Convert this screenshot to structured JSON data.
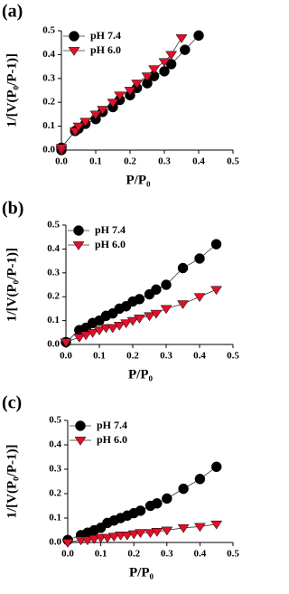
{
  "chart_data": [
    {
      "type": "line",
      "panel_label": "(a)",
      "x_label": "P/P₀",
      "y_label": "1/[V(P₀/P-1)]",
      "xlim": [
        0,
        0.5
      ],
      "ylim": [
        0,
        0.5
      ],
      "xticks": [
        {
          "value": 0,
          "label": "0.0"
        },
        0.1,
        0.2,
        0.3,
        0.4,
        0.5
      ],
      "yticks": [
        {
          "value": 0,
          "label": "0.0"
        },
        0.1,
        0.2,
        0.3,
        0.4,
        0.5
      ],
      "legend": "upper left",
      "series": [
        {
          "name": "pH 7.4",
          "color": "#000000",
          "marker": "circle",
          "x": [
            0.0,
            0.0,
            0.04,
            0.05,
            0.07,
            0.1,
            0.12,
            0.15,
            0.17,
            0.2,
            0.22,
            0.25,
            0.27,
            0.3,
            0.32,
            0.36,
            0.4
          ],
          "values": [
            0.0,
            0.01,
            0.08,
            0.09,
            0.11,
            0.13,
            0.16,
            0.18,
            0.21,
            0.23,
            0.26,
            0.28,
            0.31,
            0.33,
            0.36,
            0.42,
            0.48
          ]
        },
        {
          "name": "pH 6.0",
          "color": "#e0102a",
          "marker": "triangle-down",
          "x": [
            0.0,
            0.0,
            0.04,
            0.05,
            0.07,
            0.1,
            0.12,
            0.15,
            0.17,
            0.2,
            0.22,
            0.25,
            0.27,
            0.3,
            0.32,
            0.35
          ],
          "values": [
            0.0,
            0.01,
            0.08,
            0.1,
            0.12,
            0.15,
            0.17,
            0.2,
            0.23,
            0.25,
            0.28,
            0.31,
            0.34,
            0.37,
            0.4,
            0.47
          ]
        }
      ]
    },
    {
      "type": "line",
      "panel_label": "(b)",
      "x_label": "P/P₀",
      "y_label": "1/[V(P₀/P-1)]",
      "xlim": [
        0,
        0.5
      ],
      "ylim": [
        0,
        0.5
      ],
      "xticks": [
        {
          "value": 0,
          "label": "0.0"
        },
        0.1,
        0.2,
        0.3,
        0.4,
        0.5
      ],
      "yticks": [
        {
          "value": 0,
          "label": "0.0"
        },
        0.1,
        0.2,
        0.3,
        0.4,
        0.5
      ],
      "legend": "upper left",
      "series": [
        {
          "name": "pH 7.4",
          "color": "#000000",
          "marker": "circle",
          "x": [
            0.0,
            0.04,
            0.06,
            0.08,
            0.1,
            0.12,
            0.14,
            0.16,
            0.18,
            0.2,
            0.22,
            0.25,
            0.27,
            0.3,
            0.35,
            0.4,
            0.45
          ],
          "values": [
            0.01,
            0.06,
            0.07,
            0.09,
            0.1,
            0.12,
            0.13,
            0.15,
            0.16,
            0.18,
            0.19,
            0.21,
            0.23,
            0.25,
            0.32,
            0.36,
            0.42
          ]
        },
        {
          "name": "pH 6.0",
          "color": "#e0102a",
          "marker": "triangle-down",
          "x": [
            0.0,
            0.04,
            0.06,
            0.08,
            0.1,
            0.12,
            0.14,
            0.16,
            0.18,
            0.2,
            0.22,
            0.25,
            0.27,
            0.3,
            0.35,
            0.4,
            0.45
          ],
          "values": [
            0.01,
            0.03,
            0.04,
            0.05,
            0.06,
            0.07,
            0.07,
            0.08,
            0.09,
            0.1,
            0.11,
            0.12,
            0.13,
            0.15,
            0.17,
            0.2,
            0.23
          ]
        }
      ]
    },
    {
      "type": "line",
      "panel_label": "(c)",
      "x_label": "P/P₀",
      "y_label": "1/[V(P₀/P-1)]",
      "xlim": [
        0,
        0.5
      ],
      "ylim": [
        0,
        0.5
      ],
      "xticks": [
        {
          "value": 0,
          "label": "0.0"
        },
        0.1,
        0.2,
        0.3,
        0.4,
        0.5
      ],
      "yticks": [
        {
          "value": 0,
          "label": "0.0"
        },
        0.1,
        0.2,
        0.3,
        0.4,
        0.5
      ],
      "legend": "upper left",
      "series": [
        {
          "name": "pH 7.4",
          "color": "#000000",
          "marker": "circle",
          "x": [
            0.0,
            0.04,
            0.06,
            0.08,
            0.1,
            0.12,
            0.14,
            0.16,
            0.18,
            0.2,
            0.22,
            0.25,
            0.27,
            0.3,
            0.35,
            0.4,
            0.45
          ],
          "values": [
            0.01,
            0.03,
            0.04,
            0.05,
            0.06,
            0.08,
            0.09,
            0.1,
            0.11,
            0.12,
            0.13,
            0.15,
            0.16,
            0.18,
            0.22,
            0.26,
            0.31
          ]
        },
        {
          "name": "pH 6.0",
          "color": "#e0102a",
          "marker": "triangle-down",
          "x": [
            0.0,
            0.04,
            0.06,
            0.08,
            0.1,
            0.12,
            0.14,
            0.16,
            0.18,
            0.2,
            0.22,
            0.25,
            0.27,
            0.3,
            0.35,
            0.4,
            0.45
          ],
          "values": [
            0.0,
            0.01,
            0.01,
            0.015,
            0.02,
            0.02,
            0.025,
            0.03,
            0.03,
            0.035,
            0.04,
            0.04,
            0.045,
            0.05,
            0.06,
            0.065,
            0.075
          ]
        }
      ]
    }
  ]
}
